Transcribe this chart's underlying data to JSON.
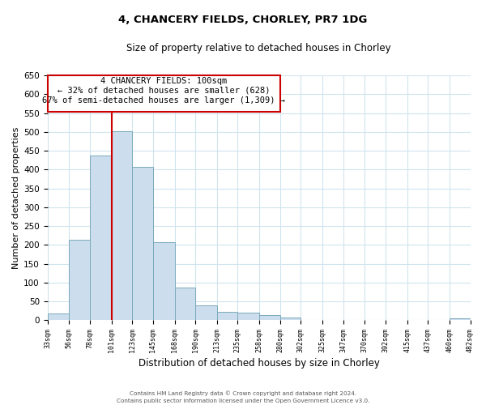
{
  "title": "4, CHANCERY FIELDS, CHORLEY, PR7 1DG",
  "subtitle": "Size of property relative to detached houses in Chorley",
  "xlabel": "Distribution of detached houses by size in Chorley",
  "ylabel": "Number of detached properties",
  "bar_color": "#ccdded",
  "bar_edge_color": "#7aaabb",
  "background_color": "#ffffff",
  "grid_color": "#d0e4ee",
  "annotation_box_color": "#cc0000",
  "property_line_x": 101,
  "bins": [
    33,
    56,
    78,
    101,
    123,
    145,
    168,
    190,
    213,
    235,
    258,
    280,
    302,
    325,
    347,
    370,
    392,
    415,
    437,
    460,
    482
  ],
  "counts": [
    18,
    213,
    437,
    501,
    408,
    207,
    87,
    40,
    22,
    19,
    13,
    7,
    0,
    0,
    0,
    0,
    0,
    0,
    0,
    5
  ],
  "ylim": [
    0,
    650
  ],
  "yticks": [
    0,
    50,
    100,
    150,
    200,
    250,
    300,
    350,
    400,
    450,
    500,
    550,
    600,
    650
  ],
  "annotation_title": "4 CHANCERY FIELDS: 100sqm",
  "annotation_line1": "← 32% of detached houses are smaller (628)",
  "annotation_line2": "67% of semi-detached houses are larger (1,309) →",
  "footnote1": "Contains HM Land Registry data © Crown copyright and database right 2024.",
  "footnote2": "Contains public sector information licensed under the Open Government Licence v3.0."
}
